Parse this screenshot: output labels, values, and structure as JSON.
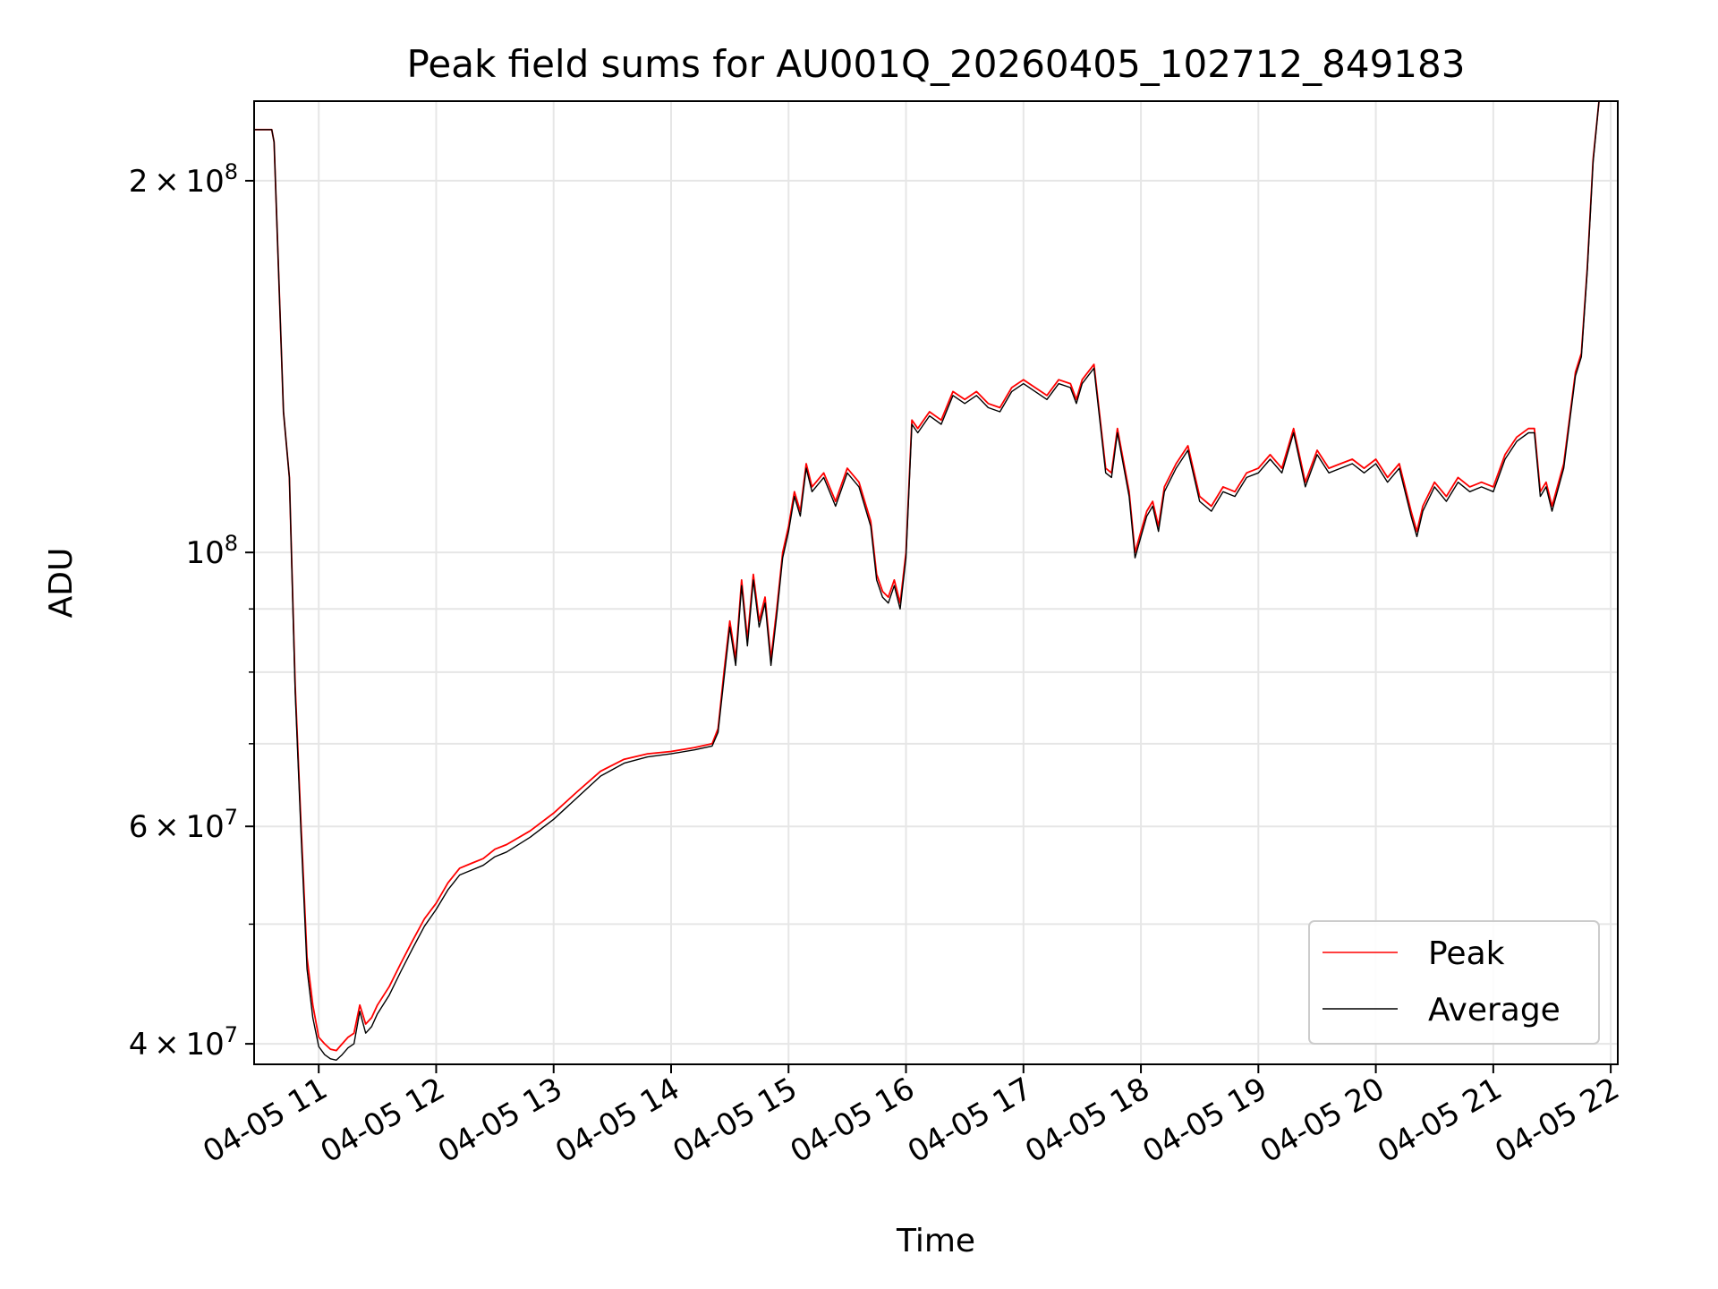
{
  "chart_data": {
    "type": "line",
    "title": "Peak field sums for AU001Q_20260405_102712_849183",
    "xlabel": "Time",
    "ylabel": "ADU",
    "yscale": "log",
    "grid": true,
    "legend_position": "lower-right",
    "xlim": [
      10.45,
      22.06
    ],
    "ylim": [
      38500000,
      232000000
    ],
    "x_ticks": [
      {
        "value": 11,
        "label": "04-05 11"
      },
      {
        "value": 12,
        "label": "04-05 12"
      },
      {
        "value": 13,
        "label": "04-05 13"
      },
      {
        "value": 14,
        "label": "04-05 14"
      },
      {
        "value": 15,
        "label": "04-05 15"
      },
      {
        "value": 16,
        "label": "04-05 16"
      },
      {
        "value": 17,
        "label": "04-05 17"
      },
      {
        "value": 18,
        "label": "04-05 18"
      },
      {
        "value": 19,
        "label": "04-05 19"
      },
      {
        "value": 20,
        "label": "04-05 20"
      },
      {
        "value": 21,
        "label": "04-05 21"
      },
      {
        "value": 22,
        "label": "04-05 22"
      }
    ],
    "y_ticks": [
      {
        "value": 40000000,
        "base": "4",
        "exp": "7"
      },
      {
        "value": 60000000,
        "base": "6",
        "exp": "7"
      },
      {
        "value": 100000000,
        "base": "",
        "exp": "8"
      },
      {
        "value": 200000000,
        "base": "2",
        "exp": "8"
      }
    ],
    "y_minor_ticks": [
      50000000,
      70000000,
      80000000,
      90000000
    ],
    "series": [
      {
        "name": "Peak",
        "color": "#ff0000",
        "x": [
          10.45,
          10.6,
          10.62,
          10.7,
          10.75,
          10.8,
          10.85,
          10.9,
          10.95,
          11.0,
          11.05,
          11.1,
          11.15,
          11.2,
          11.25,
          11.3,
          11.35,
          11.4,
          11.45,
          11.5,
          11.6,
          11.7,
          11.8,
          11.9,
          12.0,
          12.1,
          12.2,
          12.3,
          12.4,
          12.5,
          12.6,
          12.8,
          13.0,
          13.2,
          13.4,
          13.6,
          13.8,
          14.0,
          14.2,
          14.35,
          14.4,
          14.45,
          14.5,
          14.55,
          14.6,
          14.65,
          14.7,
          14.75,
          14.8,
          14.85,
          14.9,
          14.95,
          15.0,
          15.05,
          15.1,
          15.15,
          15.2,
          15.3,
          15.4,
          15.5,
          15.6,
          15.7,
          15.75,
          15.8,
          15.85,
          15.9,
          15.95,
          16.0,
          16.05,
          16.1,
          16.2,
          16.3,
          16.4,
          16.5,
          16.6,
          16.7,
          16.8,
          16.9,
          17.0,
          17.1,
          17.2,
          17.3,
          17.4,
          17.45,
          17.5,
          17.6,
          17.7,
          17.75,
          17.8,
          17.9,
          17.95,
          18.0,
          18.05,
          18.1,
          18.15,
          18.2,
          18.3,
          18.4,
          18.5,
          18.6,
          18.7,
          18.8,
          18.9,
          19.0,
          19.1,
          19.2,
          19.3,
          19.4,
          19.5,
          19.55,
          19.6,
          19.7,
          19.8,
          19.9,
          20.0,
          20.1,
          20.2,
          20.3,
          20.35,
          20.4,
          20.5,
          20.6,
          20.7,
          20.8,
          20.9,
          21.0,
          21.1,
          21.2,
          21.3,
          21.35,
          21.4,
          21.45,
          21.5,
          21.6,
          21.7,
          21.75,
          21.8,
          21.85,
          21.9,
          22.06
        ],
        "y": [
          220000000,
          220000000,
          215000000,
          130000000,
          115000000,
          78000000,
          60000000,
          47000000,
          43000000,
          40500000,
          40000000,
          39600000,
          39500000,
          40000000,
          40500000,
          40800000,
          43000000,
          41500000,
          42000000,
          43000000,
          44500000,
          46500000,
          48500000,
          50500000,
          52000000,
          54000000,
          55500000,
          56000000,
          56500000,
          57500000,
          58000000,
          59500000,
          61500000,
          64000000,
          66500000,
          68000000,
          68700000,
          69000000,
          69500000,
          70000000,
          72000000,
          80000000,
          88000000,
          82000000,
          95000000,
          85000000,
          96000000,
          88000000,
          92000000,
          82000000,
          90000000,
          100000000,
          105000000,
          112000000,
          108000000,
          118000000,
          113000000,
          116000000,
          110000000,
          117000000,
          114000000,
          106000000,
          96000000,
          93000000,
          92000000,
          95000000,
          91000000,
          100000000,
          128000000,
          126000000,
          130000000,
          128000000,
          135000000,
          133000000,
          135000000,
          132000000,
          131000000,
          136000000,
          138000000,
          136000000,
          134000000,
          138000000,
          137000000,
          133000000,
          138000000,
          142000000,
          117000000,
          116000000,
          126000000,
          112000000,
          100000000,
          104000000,
          108000000,
          110000000,
          105000000,
          113000000,
          118000000,
          122000000,
          111000000,
          109000000,
          113000000,
          112000000,
          116000000,
          117000000,
          120000000,
          117000000,
          126000000,
          114000000,
          121000000,
          119000000,
          117000000,
          118000000,
          119000000,
          117000000,
          119000000,
          115000000,
          118000000,
          108000000,
          104000000,
          109000000,
          114000000,
          111000000,
          115000000,
          113000000,
          114000000,
          113000000,
          120000000,
          124000000,
          126000000,
          126000000,
          112000000,
          114000000,
          109000000,
          118000000,
          140000000,
          145000000,
          170000000,
          208000000,
          232000000,
          232000000
        ]
      },
      {
        "name": "Average",
        "color": "#000000",
        "x": [
          10.45,
          10.6,
          10.62,
          10.7,
          10.75,
          10.8,
          10.85,
          10.9,
          10.95,
          11.0,
          11.05,
          11.1,
          11.15,
          11.2,
          11.25,
          11.3,
          11.35,
          11.4,
          11.45,
          11.5,
          11.6,
          11.7,
          11.8,
          11.9,
          12.0,
          12.1,
          12.2,
          12.3,
          12.4,
          12.5,
          12.6,
          12.8,
          13.0,
          13.2,
          13.4,
          13.6,
          13.8,
          14.0,
          14.2,
          14.35,
          14.4,
          14.45,
          14.5,
          14.55,
          14.6,
          14.65,
          14.7,
          14.75,
          14.8,
          14.85,
          14.9,
          14.95,
          15.0,
          15.05,
          15.1,
          15.15,
          15.2,
          15.3,
          15.4,
          15.5,
          15.6,
          15.7,
          15.75,
          15.8,
          15.85,
          15.9,
          15.95,
          16.0,
          16.05,
          16.1,
          16.2,
          16.3,
          16.4,
          16.5,
          16.6,
          16.7,
          16.8,
          16.9,
          17.0,
          17.1,
          17.2,
          17.3,
          17.4,
          17.45,
          17.5,
          17.6,
          17.7,
          17.75,
          17.8,
          17.9,
          17.95,
          18.0,
          18.05,
          18.1,
          18.15,
          18.2,
          18.3,
          18.4,
          18.5,
          18.6,
          18.7,
          18.8,
          18.9,
          19.0,
          19.1,
          19.2,
          19.3,
          19.4,
          19.5,
          19.55,
          19.6,
          19.7,
          19.8,
          19.9,
          20.0,
          20.1,
          20.2,
          20.3,
          20.35,
          20.4,
          20.5,
          20.6,
          20.7,
          20.8,
          20.9,
          21.0,
          21.1,
          21.2,
          21.3,
          21.35,
          21.4,
          21.45,
          21.5,
          21.6,
          21.7,
          21.75,
          21.8,
          21.85,
          21.9,
          22.06
        ],
        "y": [
          220000000,
          220000000,
          215000000,
          130000000,
          115000000,
          77000000,
          59000000,
          46000000,
          42000000,
          39800000,
          39200000,
          38900000,
          38800000,
          39200000,
          39700000,
          40000000,
          42500000,
          40800000,
          41300000,
          42300000,
          43800000,
          45800000,
          47800000,
          49800000,
          51400000,
          53300000,
          54800000,
          55300000,
          55800000,
          56700000,
          57200000,
          58800000,
          60800000,
          63300000,
          65900000,
          67500000,
          68300000,
          68700000,
          69200000,
          69700000,
          71500000,
          79000000,
          87000000,
          81000000,
          94000000,
          84000000,
          95000000,
          87000000,
          91000000,
          81000000,
          89000000,
          99000000,
          104000000,
          111000000,
          107000000,
          117000000,
          112000000,
          115000000,
          109000000,
          116000000,
          113000000,
          105000000,
          95000000,
          92000000,
          91000000,
          94000000,
          90000000,
          99000000,
          127000000,
          125000000,
          129000000,
          127000000,
          134000000,
          132000000,
          134000000,
          131000000,
          130000000,
          135000000,
          137000000,
          135000000,
          133000000,
          137000000,
          136000000,
          132000000,
          137000000,
          141000000,
          116000000,
          115000000,
          125000000,
          111000000,
          99000000,
          103000000,
          107000000,
          109000000,
          104000000,
          112000000,
          117000000,
          121000000,
          110000000,
          108000000,
          112000000,
          111000000,
          115000000,
          116000000,
          119000000,
          116000000,
          125000000,
          113000000,
          120000000,
          118000000,
          116000000,
          117000000,
          118000000,
          116000000,
          118000000,
          114000000,
          117000000,
          107000000,
          103000000,
          108000000,
          113000000,
          110000000,
          114000000,
          112000000,
          113000000,
          112000000,
          119000000,
          123000000,
          125000000,
          125000000,
          111000000,
          113000000,
          108000000,
          117000000,
          139000000,
          144000000,
          169000000,
          207000000,
          232000000,
          232000000
        ]
      }
    ]
  }
}
